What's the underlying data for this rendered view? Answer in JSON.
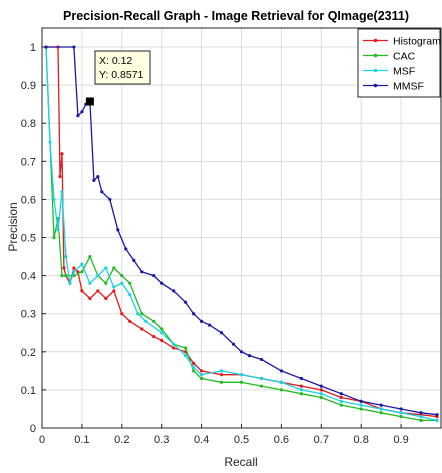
{
  "chart_data": {
    "type": "line",
    "title": "Precision-Recall Graph - Image Retrieval for QImage(2311)",
    "xlabel": "Recall",
    "ylabel": "Precision",
    "xlim": [
      0,
      1
    ],
    "ylim": [
      0,
      1.05
    ],
    "x_ticks": [
      "0",
      "0.1",
      "0.2",
      "0.3",
      "0.4",
      "0.5",
      "0.6",
      "0.7",
      "0.8",
      "0.9"
    ],
    "y_ticks": [
      "0",
      "0.1",
      "0.2",
      "0.3",
      "0.4",
      "0.5",
      "0.6",
      "0.7",
      "0.8",
      "0.9",
      "1"
    ],
    "grid": true,
    "legend_position": "top-right",
    "series": [
      {
        "name": "Histogram",
        "color": "#e41a1c",
        "points": [
          [
            0.01,
            1.0
          ],
          [
            0.04,
            1.0
          ],
          [
            0.045,
            0.66
          ],
          [
            0.05,
            0.72
          ],
          [
            0.055,
            0.42
          ],
          [
            0.06,
            0.4
          ],
          [
            0.07,
            0.38
          ],
          [
            0.08,
            0.42
          ],
          [
            0.09,
            0.41
          ],
          [
            0.1,
            0.36
          ],
          [
            0.12,
            0.34
          ],
          [
            0.14,
            0.36
          ],
          [
            0.16,
            0.34
          ],
          [
            0.18,
            0.36
          ],
          [
            0.2,
            0.3
          ],
          [
            0.22,
            0.28
          ],
          [
            0.25,
            0.26
          ],
          [
            0.28,
            0.24
          ],
          [
            0.3,
            0.23
          ],
          [
            0.33,
            0.21
          ],
          [
            0.36,
            0.2
          ],
          [
            0.38,
            0.17
          ],
          [
            0.4,
            0.15
          ],
          [
            0.45,
            0.14
          ],
          [
            0.5,
            0.14
          ],
          [
            0.55,
            0.13
          ],
          [
            0.6,
            0.12
          ],
          [
            0.65,
            0.11
          ],
          [
            0.7,
            0.1
          ],
          [
            0.75,
            0.08
          ],
          [
            0.8,
            0.07
          ],
          [
            0.85,
            0.05
          ],
          [
            0.9,
            0.04
          ],
          [
            0.95,
            0.035
          ],
          [
            0.99,
            0.03
          ]
        ]
      },
      {
        "name": "CAC",
        "color": "#22bb22",
        "points": [
          [
            0.01,
            1.0
          ],
          [
            0.03,
            0.5
          ],
          [
            0.04,
            0.55
          ],
          [
            0.05,
            0.4
          ],
          [
            0.06,
            0.4
          ],
          [
            0.08,
            0.4
          ],
          [
            0.1,
            0.41
          ],
          [
            0.12,
            0.45
          ],
          [
            0.14,
            0.4
          ],
          [
            0.16,
            0.38
          ],
          [
            0.18,
            0.42
          ],
          [
            0.2,
            0.4
          ],
          [
            0.22,
            0.38
          ],
          [
            0.25,
            0.3
          ],
          [
            0.28,
            0.28
          ],
          [
            0.3,
            0.26
          ],
          [
            0.33,
            0.22
          ],
          [
            0.36,
            0.21
          ],
          [
            0.38,
            0.15
          ],
          [
            0.4,
            0.13
          ],
          [
            0.45,
            0.12
          ],
          [
            0.5,
            0.12
          ],
          [
            0.55,
            0.11
          ],
          [
            0.6,
            0.1
          ],
          [
            0.65,
            0.09
          ],
          [
            0.7,
            0.08
          ],
          [
            0.75,
            0.06
          ],
          [
            0.8,
            0.05
          ],
          [
            0.85,
            0.04
          ],
          [
            0.9,
            0.03
          ],
          [
            0.95,
            0.02
          ],
          [
            0.99,
            0.02
          ]
        ]
      },
      {
        "name": "MSF",
        "color": "#19d3e3",
        "points": [
          [
            0.01,
            1.0
          ],
          [
            0.02,
            0.75
          ],
          [
            0.03,
            0.6
          ],
          [
            0.04,
            0.52
          ],
          [
            0.05,
            0.62
          ],
          [
            0.06,
            0.45
          ],
          [
            0.07,
            0.38
          ],
          [
            0.08,
            0.41
          ],
          [
            0.1,
            0.43
          ],
          [
            0.12,
            0.38
          ],
          [
            0.14,
            0.4
          ],
          [
            0.16,
            0.42
          ],
          [
            0.18,
            0.37
          ],
          [
            0.2,
            0.38
          ],
          [
            0.22,
            0.35
          ],
          [
            0.24,
            0.3
          ],
          [
            0.26,
            0.28
          ],
          [
            0.3,
            0.25
          ],
          [
            0.33,
            0.22
          ],
          [
            0.36,
            0.19
          ],
          [
            0.38,
            0.16
          ],
          [
            0.4,
            0.14
          ],
          [
            0.45,
            0.15
          ],
          [
            0.5,
            0.14
          ],
          [
            0.55,
            0.13
          ],
          [
            0.6,
            0.12
          ],
          [
            0.65,
            0.1
          ],
          [
            0.7,
            0.09
          ],
          [
            0.75,
            0.07
          ],
          [
            0.8,
            0.06
          ],
          [
            0.85,
            0.05
          ],
          [
            0.9,
            0.04
          ],
          [
            0.95,
            0.03
          ],
          [
            0.99,
            0.02
          ]
        ]
      },
      {
        "name": "MMSF",
        "color": "#1a1aa6",
        "points": [
          [
            0.01,
            1.0
          ],
          [
            0.08,
            1.0
          ],
          [
            0.09,
            0.82
          ],
          [
            0.1,
            0.83
          ],
          [
            0.11,
            0.85
          ],
          [
            0.12,
            0.8571
          ],
          [
            0.13,
            0.65
          ],
          [
            0.14,
            0.66
          ],
          [
            0.15,
            0.62
          ],
          [
            0.17,
            0.6
          ],
          [
            0.19,
            0.52
          ],
          [
            0.21,
            0.47
          ],
          [
            0.23,
            0.44
          ],
          [
            0.25,
            0.41
          ],
          [
            0.28,
            0.4
          ],
          [
            0.3,
            0.38
          ],
          [
            0.33,
            0.36
          ],
          [
            0.36,
            0.33
          ],
          [
            0.38,
            0.3
          ],
          [
            0.4,
            0.28
          ],
          [
            0.42,
            0.27
          ],
          [
            0.45,
            0.25
          ],
          [
            0.48,
            0.22
          ],
          [
            0.5,
            0.2
          ],
          [
            0.52,
            0.19
          ],
          [
            0.55,
            0.18
          ],
          [
            0.6,
            0.15
          ],
          [
            0.65,
            0.13
          ],
          [
            0.7,
            0.11
          ],
          [
            0.75,
            0.09
          ],
          [
            0.8,
            0.07
          ],
          [
            0.85,
            0.06
          ],
          [
            0.9,
            0.05
          ],
          [
            0.95,
            0.04
          ],
          [
            0.99,
            0.035
          ]
        ]
      }
    ],
    "datatip": {
      "x": 0.12,
      "y": 0.8571,
      "x_text": "X: 0.12",
      "y_text": "Y: 0.8571"
    }
  }
}
